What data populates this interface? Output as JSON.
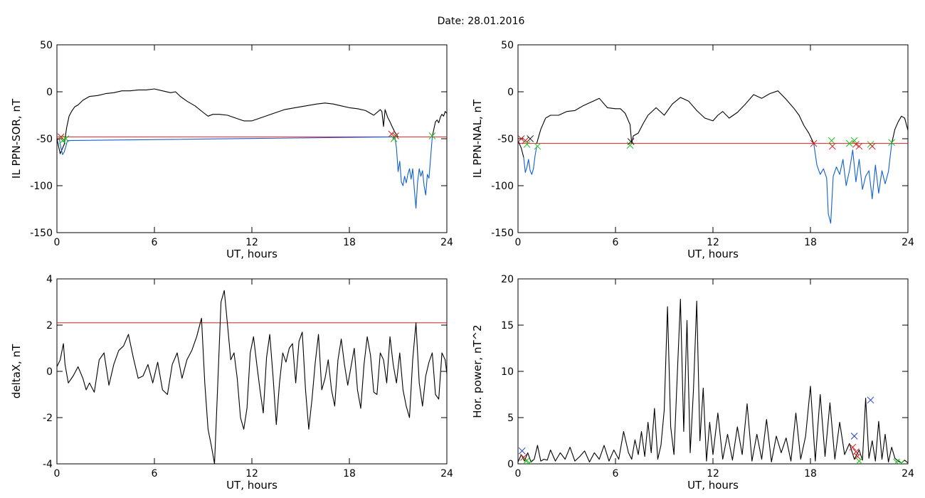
{
  "figure": {
    "title": "Date:  28.01.2016"
  },
  "chart_data": [
    {
      "type": "line",
      "xlabel": "UT, hours",
      "ylabel": "IL PPN-SOR, nT",
      "xlim": [
        0,
        24
      ],
      "ylim": [
        -150,
        50
      ],
      "xticks": [
        0,
        6,
        12,
        18,
        24
      ],
      "yticks": [
        -150,
        -100,
        -50,
        0,
        50
      ],
      "threshold": {
        "value": -48,
        "color": "#e02020"
      },
      "series": [
        {
          "color": "#000000",
          "x": [
            0,
            0.1,
            0.2,
            0.3,
            0.45,
            0.6,
            0.75,
            0.9,
            1.1,
            1.3,
            1.6,
            2,
            2.5,
            3,
            3.5,
            4,
            4.5,
            5,
            5.5,
            6,
            6.5,
            7,
            7.3,
            7.6,
            8,
            8.5,
            9,
            9.3,
            9.6,
            10,
            10.5,
            11,
            11.5,
            12,
            12.5,
            13,
            14,
            15,
            16,
            16.5,
            17,
            17.5,
            18,
            18.5,
            19,
            19.5,
            19.9,
            20,
            20.1,
            20.2,
            20.35,
            20.5,
            20.6,
            20.8,
            21.0
          ],
          "y": [
            -50,
            -58,
            -66,
            -62,
            -56,
            -38,
            -26,
            -21,
            -16,
            -14,
            -9,
            -5,
            -4,
            -2,
            -1,
            1,
            1,
            2,
            2,
            3,
            1,
            -1,
            0,
            -5,
            -10,
            -15,
            -22,
            -26,
            -24,
            -24,
            -25,
            -28,
            -31,
            -31,
            -28,
            -25,
            -19,
            -16,
            -13,
            -12,
            -13,
            -15,
            -17,
            -18,
            -20,
            -25,
            -19,
            -21,
            -37,
            -19,
            -27,
            -32,
            -36,
            -43,
            -48
          ]
        },
        {
          "color": "#1060d0",
          "x": [
            0.15,
            0.25,
            0.35,
            0.45,
            0.55,
            0.65,
            20.8,
            20.9,
            21.0,
            21.1,
            21.2,
            21.3,
            21.4,
            21.5,
            21.6,
            21.7,
            21.8,
            21.9,
            22.0,
            22.1,
            22.2,
            22.3,
            22.4,
            22.5,
            22.6,
            22.7,
            22.8,
            22.9,
            23.0,
            23.1
          ],
          "y": [
            -50,
            -60,
            -67,
            -64,
            -58,
            -52,
            -48,
            -60,
            -85,
            -74,
            -96,
            -100,
            -90,
            -97,
            -88,
            -82,
            -93,
            -82,
            -104,
            -124,
            -96,
            -82,
            -90,
            -84,
            -100,
            -110,
            -88,
            -92,
            -70,
            -48
          ]
        },
        {
          "color": "#000000",
          "x": [
            23.1,
            23.2,
            23.3,
            23.4,
            23.5,
            23.6,
            23.7,
            23.8,
            23.9,
            24
          ],
          "y": [
            -48,
            -40,
            -32,
            -30,
            -33,
            -27,
            -24,
            -26,
            -21,
            -23
          ]
        }
      ],
      "markers": [
        {
          "x": 0.25,
          "y": -48,
          "color": "#d02020"
        },
        {
          "x": 0.35,
          "y": -52,
          "color": "#20c020"
        },
        {
          "x": 0.55,
          "y": -50,
          "color": "#20c020"
        },
        {
          "x": 20.6,
          "y": -45,
          "color": "#d02020"
        },
        {
          "x": 20.85,
          "y": -47,
          "color": "#d02020"
        },
        {
          "x": 20.75,
          "y": -50,
          "color": "#20c020"
        },
        {
          "x": 23.1,
          "y": -47,
          "color": "#20c020"
        }
      ]
    },
    {
      "type": "line",
      "xlabel": "UT, hours",
      "ylabel": "IL PPN-NAL, nT",
      "xlim": [
        0,
        24
      ],
      "ylim": [
        -150,
        50
      ],
      "xticks": [
        0,
        6,
        12,
        18,
        24
      ],
      "yticks": [
        -150,
        -100,
        -50,
        0,
        50
      ],
      "threshold": {
        "value": -55,
        "color": "#e02020"
      },
      "series": [
        {
          "color": "#000000",
          "x": [
            0,
            0.2,
            0.35
          ],
          "y": [
            -52,
            -60,
            -70
          ]
        },
        {
          "color": "#1060d0",
          "x": [
            0.35,
            0.45,
            0.55,
            0.65,
            0.75,
            0.85,
            0.95,
            1.05,
            1.15
          ],
          "y": [
            -70,
            -86,
            -80,
            -72,
            -84,
            -88,
            -82,
            -68,
            -58
          ]
        },
        {
          "color": "#000000",
          "x": [
            1.15,
            1.4,
            1.7,
            2,
            2.5,
            3,
            3.5,
            4,
            4.5,
            5,
            5.5,
            6,
            6.3,
            6.6,
            6.9,
            7.0,
            7.1,
            7.4,
            7.7,
            8,
            8.5,
            9,
            9.5,
            10,
            10.5,
            11,
            11.5,
            12,
            12.3,
            12.6,
            13,
            13.5,
            14,
            14.5,
            15,
            15.5,
            16,
            16.5,
            17,
            17.3,
            17.6,
            17.9,
            18.2
          ],
          "y": [
            -55,
            -40,
            -28,
            -25,
            -25,
            -21,
            -20,
            -15,
            -11,
            -7,
            -17,
            -18,
            -18,
            -23,
            -35,
            -55,
            -47,
            -44,
            -34,
            -25,
            -17,
            -25,
            -13,
            -6,
            -10,
            -20,
            -28,
            -31,
            -25,
            -21,
            -28,
            -22,
            -13,
            -3,
            -7,
            -2,
            1,
            -8,
            -18,
            -25,
            -36,
            -44,
            -55
          ]
        },
        {
          "color": "#1060d0",
          "x": [
            18.2,
            18.4,
            18.6,
            18.8,
            19.0,
            19.1,
            19.25,
            19.4,
            19.6,
            19.8,
            20.0,
            20.2,
            20.4,
            20.6,
            20.8,
            21.0,
            21.2,
            21.4,
            21.6,
            21.8,
            22.0,
            22.2,
            22.4,
            22.6,
            22.8,
            23.0
          ],
          "y": [
            -55,
            -78,
            -88,
            -82,
            -92,
            -130,
            -140,
            -90,
            -80,
            -88,
            -72,
            -100,
            -84,
            -62,
            -96,
            -72,
            -104,
            -90,
            -84,
            -114,
            -78,
            -108,
            -84,
            -98,
            -85,
            -55
          ]
        },
        {
          "color": "#000000",
          "x": [
            23.0,
            23.2,
            23.4,
            23.6,
            23.8,
            24
          ],
          "y": [
            -55,
            -40,
            -32,
            -26,
            -28,
            -41
          ]
        }
      ],
      "markers": [
        {
          "x": 0.2,
          "y": -50,
          "color": "#d02020"
        },
        {
          "x": 0.45,
          "y": -52,
          "color": "#d02020"
        },
        {
          "x": 0.55,
          "y": -56,
          "color": "#20c020"
        },
        {
          "x": 0.75,
          "y": -50,
          "color": "#202020"
        },
        {
          "x": 1.2,
          "y": -58,
          "color": "#20c020"
        },
        {
          "x": 6.9,
          "y": -57,
          "color": "#20c020"
        },
        {
          "x": 6.95,
          "y": -53,
          "color": "#202020"
        },
        {
          "x": 18.2,
          "y": -55,
          "color": "#d02020"
        },
        {
          "x": 19.3,
          "y": -52,
          "color": "#20c020"
        },
        {
          "x": 19.35,
          "y": -58,
          "color": "#d02020"
        },
        {
          "x": 20.4,
          "y": -55,
          "color": "#20c020"
        },
        {
          "x": 20.7,
          "y": -52,
          "color": "#20c020"
        },
        {
          "x": 20.8,
          "y": -56,
          "color": "#d02020"
        },
        {
          "x": 21.0,
          "y": -58,
          "color": "#d02020"
        },
        {
          "x": 21.7,
          "y": -56,
          "color": "#20c020"
        },
        {
          "x": 21.8,
          "y": -58,
          "color": "#d02020"
        },
        {
          "x": 23.0,
          "y": -54,
          "color": "#20c020"
        }
      ]
    },
    {
      "type": "line",
      "xlabel": "UT, hours",
      "ylabel": "deltaX, nT",
      "xlim": [
        0,
        24
      ],
      "ylim": [
        -4,
        4
      ],
      "xticks": [
        0,
        6,
        12,
        18,
        24
      ],
      "yticks": [
        -4,
        -2,
        0,
        2,
        4
      ],
      "threshold": {
        "value": 2.1,
        "color": "#e02020"
      },
      "series": [
        {
          "color": "#000000",
          "x": [
            0,
            0.2,
            0.4,
            0.5,
            0.7,
            1.0,
            1.3,
            1.6,
            1.8,
            2.0,
            2.3,
            2.6,
            2.9,
            3.2,
            3.5,
            3.8,
            4.1,
            4.4,
            4.7,
            5.0,
            5.3,
            5.6,
            5.9,
            6.2,
            6.5,
            6.8,
            7.1,
            7.4,
            7.7,
            8.0,
            8.3,
            8.6,
            8.9,
            9.1,
            9.3,
            9.5,
            9.7,
            9.9,
            10.1,
            10.3,
            10.5,
            10.7,
            10.9,
            11.1,
            11.3,
            11.5,
            11.7,
            11.9,
            12.1,
            12.3,
            12.5,
            12.7,
            12.9,
            13.1,
            13.3,
            13.5,
            13.7,
            13.9,
            14.1,
            14.3,
            14.5,
            14.7,
            14.9,
            15.1,
            15.3,
            15.5,
            15.7,
            15.9,
            16.1,
            16.3,
            16.5,
            16.7,
            16.9,
            17.1,
            17.3,
            17.5,
            17.7,
            17.9,
            18.1,
            18.3,
            18.5,
            18.7,
            18.9,
            19.1,
            19.3,
            19.5,
            19.7,
            19.9,
            20.1,
            20.3,
            20.5,
            20.7,
            20.9,
            21.1,
            21.3,
            21.5,
            21.7,
            21.9,
            22.1,
            22.3,
            22.5,
            22.7,
            22.9,
            23.1,
            23.3,
            23.5,
            23.7,
            23.9,
            24
          ],
          "y": [
            0.2,
            0.5,
            1.2,
            0.3,
            -0.5,
            -0.2,
            0.2,
            -0.3,
            -0.8,
            -0.5,
            -0.9,
            0.5,
            0.8,
            -0.6,
            0.3,
            0.9,
            1.1,
            1.6,
            0.6,
            -0.3,
            -0.2,
            0.3,
            -0.5,
            0.4,
            -0.8,
            -1.0,
            0.3,
            0.8,
            -0.3,
            0.5,
            0.9,
            1.5,
            2.3,
            -0.5,
            -2.5,
            -3.2,
            -4.0,
            -0.5,
            3.0,
            3.5,
            2.0,
            0.5,
            0.8,
            -0.3,
            -2.0,
            -2.5,
            -1.6,
            0.8,
            1.5,
            0.3,
            -0.8,
            -1.8,
            0.6,
            1.6,
            -0.2,
            -2.3,
            -0.5,
            0.8,
            0.4,
            1.0,
            1.2,
            -0.5,
            1.3,
            1.7,
            -0.8,
            -2.5,
            -1.2,
            0.4,
            1.6,
            -0.8,
            -0.3,
            0.5,
            -0.8,
            -1.5,
            0.5,
            1.4,
            0.3,
            -0.6,
            0.2,
            1.0,
            -0.8,
            -1.6,
            0.3,
            1.5,
            0.7,
            -0.9,
            -1.0,
            0.8,
            0.5,
            -0.5,
            1.5,
            0.3,
            -0.5,
            0.8,
            -0.8,
            -1.5,
            -2.0,
            0.5,
            2.1,
            -0.5,
            -1.5,
            -0.2,
            0.4,
            0.8,
            -1.0,
            -1.2,
            0.8,
            0.5,
            -0.1
          ]
        }
      ],
      "markers": []
    },
    {
      "type": "line",
      "xlabel": "UT, hours",
      "ylabel": "Hor. power, nT^2",
      "xlim": [
        0,
        24
      ],
      "ylim": [
        0,
        20
      ],
      "xticks": [
        0,
        6,
        12,
        18,
        24
      ],
      "yticks": [
        0,
        5,
        10,
        15,
        20
      ],
      "threshold": null,
      "series": [
        {
          "color": "#000000",
          "x": [
            0,
            0.2,
            0.4,
            0.6,
            0.8,
            1.0,
            1.2,
            1.4,
            1.6,
            1.8,
            2.0,
            2.3,
            2.6,
            2.9,
            3.2,
            3.5,
            3.8,
            4.1,
            4.4,
            4.7,
            5.0,
            5.3,
            5.6,
            5.9,
            6.2,
            6.5,
            6.8,
            7.0,
            7.2,
            7.4,
            7.6,
            7.8,
            8.0,
            8.2,
            8.4,
            8.6,
            8.8,
            9.0,
            9.2,
            9.4,
            9.6,
            9.8,
            10.0,
            10.2,
            10.4,
            10.6,
            10.8,
            11.0,
            11.2,
            11.4,
            11.6,
            11.8,
            12.0,
            12.3,
            12.6,
            12.9,
            13.2,
            13.5,
            13.8,
            14.1,
            14.4,
            14.7,
            15.0,
            15.3,
            15.6,
            15.9,
            16.2,
            16.5,
            16.8,
            17.1,
            17.4,
            17.7,
            18.0,
            18.3,
            18.6,
            18.9,
            19.2,
            19.5,
            19.8,
            20.1,
            20.4,
            20.7,
            21.0,
            21.2,
            21.4,
            21.6,
            21.8,
            22.0,
            22.2,
            22.4,
            22.6,
            22.8,
            23.0,
            23.2,
            23.4,
            23.6,
            23.8,
            24
          ],
          "y": [
            0.2,
            1.0,
            0.3,
            1.2,
            0.2,
            0.5,
            2.0,
            0.3,
            0.5,
            0.4,
            1.5,
            0.3,
            1.2,
            0.5,
            1.8,
            0.3,
            0.8,
            1.4,
            0.2,
            1.2,
            0.5,
            2.0,
            0.3,
            1.5,
            0.5,
            3.5,
            1.2,
            0.5,
            2.6,
            1.0,
            3.5,
            0.8,
            4.5,
            1.2,
            6.0,
            0.5,
            2.0,
            5.8,
            17.0,
            4.0,
            1.0,
            9.5,
            17.8,
            3.5,
            15.5,
            1.2,
            8.0,
            17.6,
            2.5,
            8.2,
            0.3,
            4.5,
            1.0,
            5.5,
            0.5,
            3.2,
            0.4,
            4.0,
            1.0,
            6.5,
            0.3,
            3.2,
            0.5,
            4.8,
            0.2,
            3.0,
            1.2,
            2.8,
            0.3,
            5.5,
            0.5,
            3.0,
            8.4,
            0.3,
            7.5,
            0.8,
            6.6,
            0.5,
            4.5,
            1.0,
            2.2,
            0.5,
            1.5,
            0.4,
            7.1,
            0.6,
            2.5,
            0.3,
            4.6,
            0.5,
            3.2,
            0.2,
            1.8,
            0.6,
            0.3,
            0.1,
            0.4,
            0.1
          ]
        }
      ],
      "markers": [
        {
          "x": 0.25,
          "y": 1.4,
          "color": "#2040d0"
        },
        {
          "x": 0.35,
          "y": 0.7,
          "color": "#d02020"
        },
        {
          "x": 0.5,
          "y": 0.3,
          "color": "#20c020"
        },
        {
          "x": 0.7,
          "y": 0.1,
          "color": "#20c020"
        },
        {
          "x": 20.7,
          "y": 3.0,
          "color": "#2040d0"
        },
        {
          "x": 20.6,
          "y": 1.8,
          "color": "#d02020"
        },
        {
          "x": 20.8,
          "y": 1.3,
          "color": "#d02020"
        },
        {
          "x": 20.9,
          "y": 0.8,
          "color": "#d02020"
        },
        {
          "x": 21.0,
          "y": 0.3,
          "color": "#20c020"
        },
        {
          "x": 21.7,
          "y": 6.9,
          "color": "#2040d0"
        },
        {
          "x": 23.3,
          "y": 0.2,
          "color": "#20c020"
        },
        {
          "x": 23.6,
          "y": 0.1,
          "color": "#20c020"
        }
      ]
    }
  ]
}
